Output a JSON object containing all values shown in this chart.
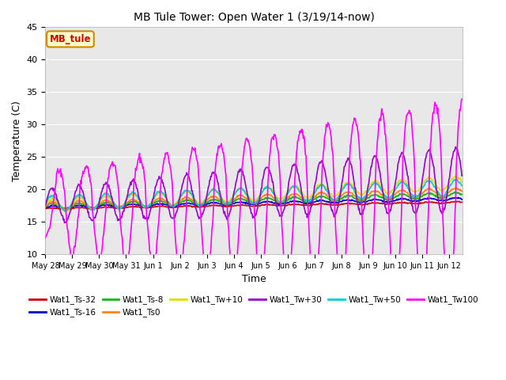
{
  "title": "MB Tule Tower: Open Water 1 (3/19/14-now)",
  "xlabel": "Time",
  "ylabel": "Temperature (C)",
  "ylim": [
    10,
    45
  ],
  "yticks": [
    10,
    15,
    20,
    25,
    30,
    35,
    40,
    45
  ],
  "x_labels": [
    "May 28",
    "May 29",
    "May 30",
    "May 31",
    "Jun 1",
    "Jun 2",
    "Jun 3",
    "Jun 4",
    "Jun 5",
    "Jun 6",
    "Jun 7",
    "Jun 8",
    "Jun 9",
    "Jun 10",
    "Jun 11",
    "Jun 12"
  ],
  "plot_bg_color": "#e8e8e8",
  "series": {
    "Wat1_Ts-32": {
      "color": "#cc0000",
      "linewidth": 1.2
    },
    "Wat1_Ts-16": {
      "color": "#0000cc",
      "linewidth": 1.2
    },
    "Wat1_Ts-8": {
      "color": "#00bb00",
      "linewidth": 1.2
    },
    "Wat1_Ts0": {
      "color": "#ff8800",
      "linewidth": 1.2
    },
    "Wat1_Tw+10": {
      "color": "#dddd00",
      "linewidth": 1.2
    },
    "Wat1_Tw+30": {
      "color": "#9900cc",
      "linewidth": 1.2
    },
    "Wat1_Tw+50": {
      "color": "#00cccc",
      "linewidth": 1.2
    },
    "Wat1_Tw100": {
      "color": "#ff00ff",
      "linewidth": 1.2
    }
  },
  "legend_box": {
    "text": "MB_tule",
    "bg_color": "#ffffcc",
    "border_color": "#cc8800",
    "text_color": "#cc0000"
  }
}
